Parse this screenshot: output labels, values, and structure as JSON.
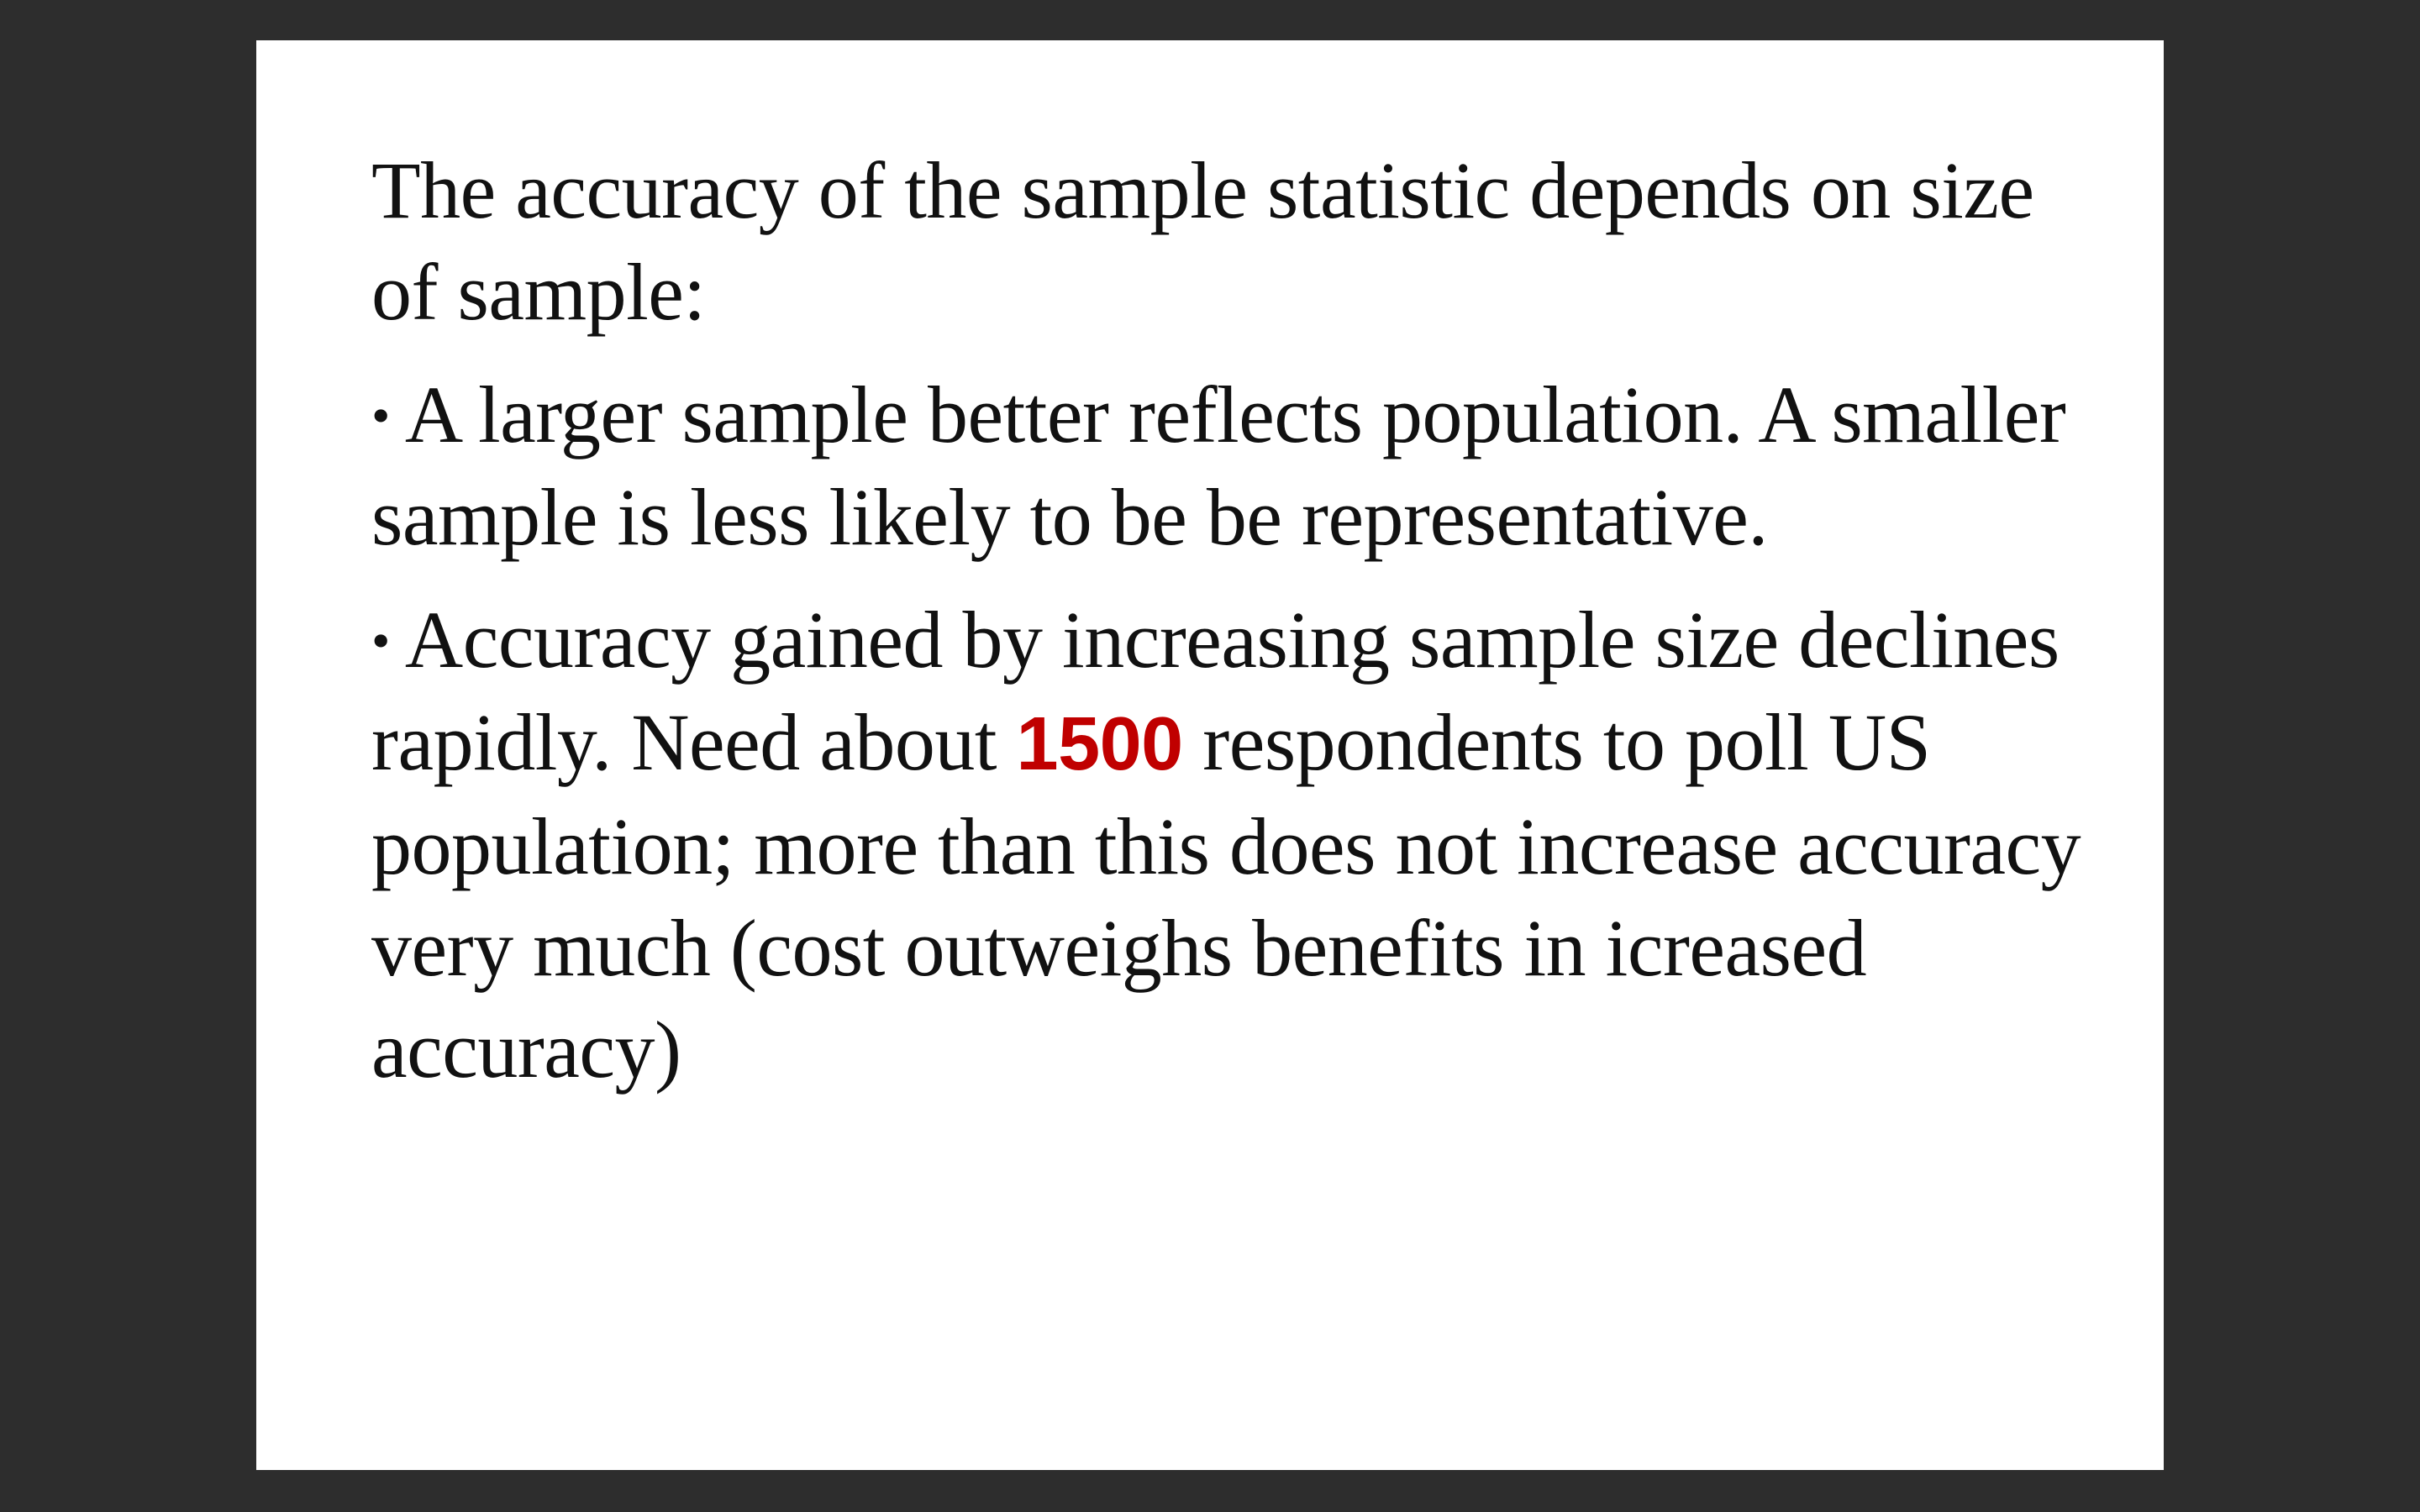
{
  "slide": {
    "intro": "The accuracy of the sample statistic depends on size of sample:",
    "bullets": [
      {
        "glyph": "•",
        "text": "A larger sample better reflects population. A smaller sample is less likely to be be representative."
      },
      {
        "glyph": "•",
        "text_before": "Accuracy gained by increasing sample size declines rapidly. Need about ",
        "highlight": "1500",
        "text_after": " respondents to poll US population; more than this does not increase accuracy very much (cost outweighs benefits in icreased accuracy)"
      }
    ],
    "colors": {
      "background": "#2d2d2d",
      "slide": "#ffffff",
      "text": "#111111",
      "highlight": "#c00000"
    }
  }
}
